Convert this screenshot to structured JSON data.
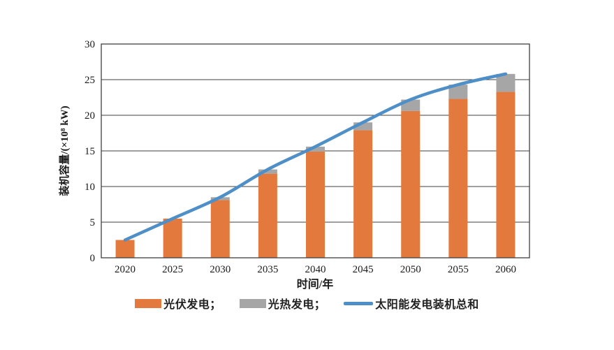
{
  "chart_data": {
    "type": "bar",
    "subtype": "stacked-bar-with-line",
    "categories": [
      "2020",
      "2025",
      "2030",
      "2035",
      "2040",
      "2045",
      "2050",
      "2055",
      "2060"
    ],
    "series": [
      {
        "name": "光伏发电",
        "kind": "bar",
        "color": "#E3793C",
        "values": [
          2.5,
          5.5,
          8.1,
          11.8,
          14.9,
          17.9,
          20.6,
          22.3,
          23.3
        ]
      },
      {
        "name": "光热发电",
        "kind": "bar",
        "color": "#A6A6A6",
        "values": [
          0,
          0,
          0.4,
          0.6,
          0.7,
          1.1,
          1.6,
          2.0,
          2.5
        ]
      },
      {
        "name": "太阳能发电装机总和",
        "kind": "line",
        "color": "#4E8FC7",
        "values": [
          2.5,
          5.5,
          8.5,
          12.4,
          15.6,
          19.0,
          22.2,
          24.3,
          25.8
        ]
      }
    ],
    "title": "",
    "xlabel": "时间/年",
    "ylabel": "装机容量/(×10⁸ kW)",
    "ylim": [
      0,
      30
    ],
    "yticks": [
      0,
      5,
      10,
      15,
      20,
      25,
      30
    ],
    "grid": "horizontal",
    "legend_position": "bottom",
    "axis_color": "#3f3f3f",
    "text_color": "#1a1a1a"
  },
  "legend": {
    "items": [
      {
        "label": "光伏发电；",
        "swatch": "bar",
        "color": "#E3793C"
      },
      {
        "label": "光热发电；",
        "swatch": "bar",
        "color": "#A6A6A6"
      },
      {
        "label": "太阳能发电装机总和",
        "swatch": "line",
        "color": "#4E8FC7"
      }
    ]
  }
}
